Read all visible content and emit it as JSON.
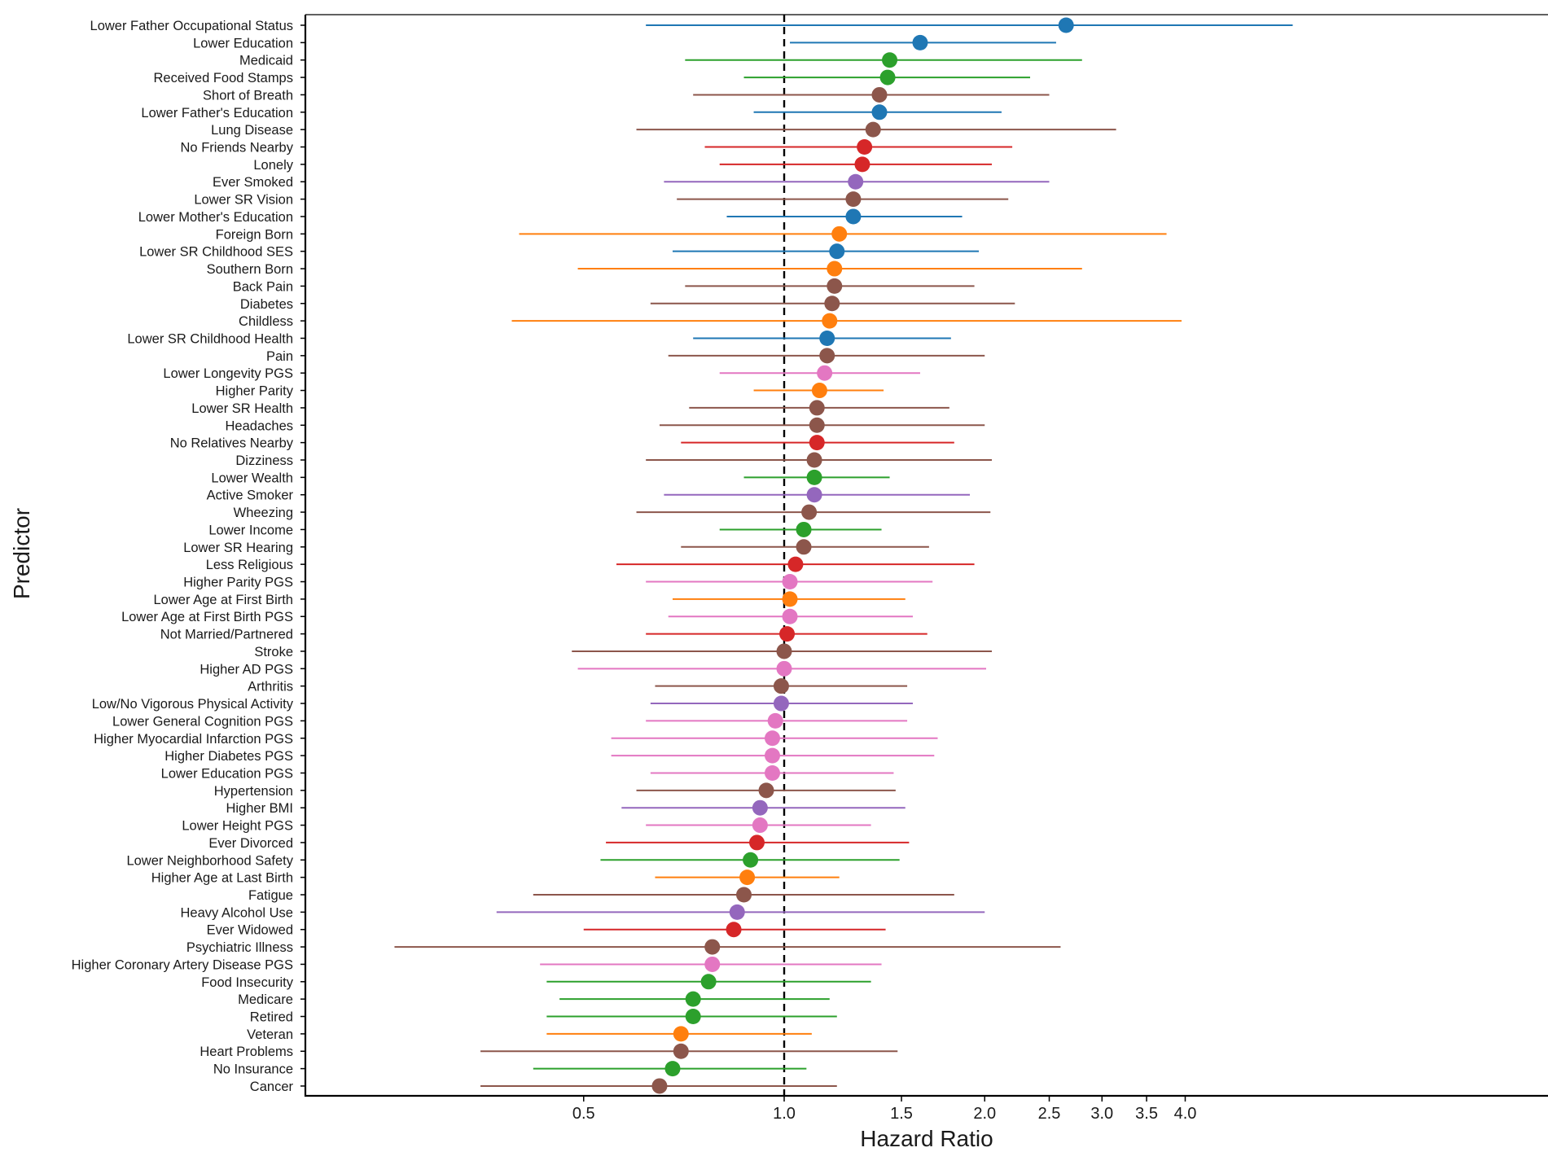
{
  "chart_data": {
    "type": "forest",
    "title": "",
    "xlabel": "Hazard Ratio",
    "ylabel": "Predictor",
    "x_scale": "log",
    "xlim": [
      0.24,
      6.5
    ],
    "x_ticks": [
      0.5,
      1.0,
      1.5,
      2.0,
      2.5,
      3.0,
      3.5,
      4.0
    ],
    "x_tick_labels": [
      "0.5",
      "1.0",
      "1.5",
      "2.0",
      "2.5",
      "3.0",
      "3.5",
      "4.0"
    ],
    "reference_line": 1.0,
    "grid": false,
    "legend": "none",
    "colors": {
      "ses": "#1f77b4",
      "demographic": "#ff7f0e",
      "economic": "#2ca02c",
      "social": "#d62728",
      "behavior": "#9467bd",
      "health": "#8c564b",
      "genetic": "#e377c2"
    },
    "rows": [
      {
        "label": "Lower Father Occupational Status",
        "hr": 2.65,
        "lo": 0.62,
        "hi": 5.8,
        "group": "ses"
      },
      {
        "label": "Lower Education",
        "hr": 1.6,
        "lo": 1.02,
        "hi": 2.56,
        "group": "ses"
      },
      {
        "label": "Medicaid",
        "hr": 1.44,
        "lo": 0.71,
        "hi": 2.8,
        "group": "economic"
      },
      {
        "label": "Received Food Stamps",
        "hr": 1.43,
        "lo": 0.87,
        "hi": 2.34,
        "group": "economic"
      },
      {
        "label": "Short of Breath",
        "hr": 1.39,
        "lo": 0.73,
        "hi": 2.5,
        "group": "health"
      },
      {
        "label": "Lower Father's Education",
        "hr": 1.39,
        "lo": 0.9,
        "hi": 2.12,
        "group": "ses"
      },
      {
        "label": "Lung Disease",
        "hr": 1.36,
        "lo": 0.6,
        "hi": 3.15,
        "group": "health"
      },
      {
        "label": "No Friends Nearby",
        "hr": 1.32,
        "lo": 0.76,
        "hi": 2.2,
        "group": "social"
      },
      {
        "label": "Lonely",
        "hr": 1.31,
        "lo": 0.8,
        "hi": 2.05,
        "group": "social"
      },
      {
        "label": "Ever Smoked",
        "hr": 1.28,
        "lo": 0.66,
        "hi": 2.5,
        "group": "behavior"
      },
      {
        "label": "Lower SR Vision",
        "hr": 1.27,
        "lo": 0.69,
        "hi": 2.17,
        "group": "health"
      },
      {
        "label": "Lower Mother's Education",
        "hr": 1.27,
        "lo": 0.82,
        "hi": 1.85,
        "group": "ses"
      },
      {
        "label": "Foreign Born",
        "hr": 1.21,
        "lo": 0.4,
        "hi": 3.75,
        "group": "demographic"
      },
      {
        "label": "Lower SR Childhood SES",
        "hr": 1.2,
        "lo": 0.68,
        "hi": 1.96,
        "group": "ses"
      },
      {
        "label": "Southern Born",
        "hr": 1.19,
        "lo": 0.49,
        "hi": 2.8,
        "group": "demographic"
      },
      {
        "label": "Back Pain",
        "hr": 1.19,
        "lo": 0.71,
        "hi": 1.93,
        "group": "health"
      },
      {
        "label": "Diabetes",
        "hr": 1.18,
        "lo": 0.63,
        "hi": 2.22,
        "group": "health"
      },
      {
        "label": "Childless",
        "hr": 1.17,
        "lo": 0.39,
        "hi": 3.95,
        "group": "demographic"
      },
      {
        "label": "Lower SR Childhood Health",
        "hr": 1.16,
        "lo": 0.73,
        "hi": 1.78,
        "group": "ses"
      },
      {
        "label": "Pain",
        "hr": 1.16,
        "lo": 0.67,
        "hi": 2.0,
        "group": "health"
      },
      {
        "label": "Lower Longevity PGS",
        "hr": 1.15,
        "lo": 0.8,
        "hi": 1.6,
        "group": "genetic"
      },
      {
        "label": "Higher Parity",
        "hr": 1.13,
        "lo": 0.9,
        "hi": 1.41,
        "group": "demographic"
      },
      {
        "label": "Lower SR Health",
        "hr": 1.12,
        "lo": 0.72,
        "hi": 1.77,
        "group": "health"
      },
      {
        "label": "Headaches",
        "hr": 1.12,
        "lo": 0.65,
        "hi": 2.0,
        "group": "health"
      },
      {
        "label": "No Relatives Nearby",
        "hr": 1.12,
        "lo": 0.7,
        "hi": 1.8,
        "group": "social"
      },
      {
        "label": "Dizziness",
        "hr": 1.11,
        "lo": 0.62,
        "hi": 2.05,
        "group": "health"
      },
      {
        "label": "Lower Wealth",
        "hr": 1.11,
        "lo": 0.87,
        "hi": 1.44,
        "group": "economic"
      },
      {
        "label": "Active Smoker",
        "hr": 1.11,
        "lo": 0.66,
        "hi": 1.9,
        "group": "behavior"
      },
      {
        "label": "Wheezing",
        "hr": 1.09,
        "lo": 0.6,
        "hi": 2.04,
        "group": "health"
      },
      {
        "label": "Lower Income",
        "hr": 1.07,
        "lo": 0.8,
        "hi": 1.4,
        "group": "economic"
      },
      {
        "label": "Lower SR Hearing",
        "hr": 1.07,
        "lo": 0.7,
        "hi": 1.65,
        "group": "health"
      },
      {
        "label": "Less Religious",
        "hr": 1.04,
        "lo": 0.56,
        "hi": 1.93,
        "group": "social"
      },
      {
        "label": "Higher Parity PGS",
        "hr": 1.02,
        "lo": 0.62,
        "hi": 1.67,
        "group": "genetic"
      },
      {
        "label": "Lower Age at First Birth",
        "hr": 1.02,
        "lo": 0.68,
        "hi": 1.52,
        "group": "demographic"
      },
      {
        "label": "Lower Age at First Birth PGS",
        "hr": 1.02,
        "lo": 0.67,
        "hi": 1.56,
        "group": "genetic"
      },
      {
        "label": "Not Married/Partnered",
        "hr": 1.01,
        "lo": 0.62,
        "hi": 1.64,
        "group": "social"
      },
      {
        "label": "Stroke",
        "hr": 1.0,
        "lo": 0.48,
        "hi": 2.05,
        "group": "health"
      },
      {
        "label": "Higher AD PGS",
        "hr": 1.0,
        "lo": 0.49,
        "hi": 2.01,
        "group": "genetic"
      },
      {
        "label": "Arthritis",
        "hr": 0.99,
        "lo": 0.64,
        "hi": 1.53,
        "group": "health"
      },
      {
        "label": "Low/No Vigorous Physical Activity",
        "hr": 0.99,
        "lo": 0.63,
        "hi": 1.56,
        "group": "behavior"
      },
      {
        "label": "Lower General Cognition PGS",
        "hr": 0.97,
        "lo": 0.62,
        "hi": 1.53,
        "group": "genetic"
      },
      {
        "label": "Higher Myocardial Infarction PGS",
        "hr": 0.96,
        "lo": 0.55,
        "hi": 1.7,
        "group": "genetic"
      },
      {
        "label": "Higher Diabetes PGS",
        "hr": 0.96,
        "lo": 0.55,
        "hi": 1.68,
        "group": "genetic"
      },
      {
        "label": "Lower Education PGS",
        "hr": 0.96,
        "lo": 0.63,
        "hi": 1.46,
        "group": "genetic"
      },
      {
        "label": "Hypertension",
        "hr": 0.94,
        "lo": 0.6,
        "hi": 1.47,
        "group": "health"
      },
      {
        "label": "Higher BMI",
        "hr": 0.92,
        "lo": 0.57,
        "hi": 1.52,
        "group": "behavior"
      },
      {
        "label": "Lower Height PGS",
        "hr": 0.92,
        "lo": 0.62,
        "hi": 1.35,
        "group": "genetic"
      },
      {
        "label": "Ever Divorced",
        "hr": 0.91,
        "lo": 0.54,
        "hi": 1.54,
        "group": "social"
      },
      {
        "label": "Lower Neighborhood Safety",
        "hr": 0.89,
        "lo": 0.53,
        "hi": 1.49,
        "group": "economic"
      },
      {
        "label": "Higher Age at Last Birth",
        "hr": 0.88,
        "lo": 0.64,
        "hi": 1.21,
        "group": "demographic"
      },
      {
        "label": "Fatigue",
        "hr": 0.87,
        "lo": 0.42,
        "hi": 1.8,
        "group": "health"
      },
      {
        "label": "Heavy Alcohol Use",
        "hr": 0.85,
        "lo": 0.37,
        "hi": 2.0,
        "group": "behavior"
      },
      {
        "label": "Ever Widowed",
        "hr": 0.84,
        "lo": 0.5,
        "hi": 1.42,
        "group": "social"
      },
      {
        "label": "Psychiatric Illness",
        "hr": 0.78,
        "lo": 0.26,
        "hi": 2.6,
        "group": "health"
      },
      {
        "label": "Higher Coronary Artery Disease PGS",
        "hr": 0.78,
        "lo": 0.43,
        "hi": 1.4,
        "group": "genetic"
      },
      {
        "label": "Food Insecurity",
        "hr": 0.77,
        "lo": 0.44,
        "hi": 1.35,
        "group": "economic"
      },
      {
        "label": "Medicare",
        "hr": 0.73,
        "lo": 0.46,
        "hi": 1.17,
        "group": "economic"
      },
      {
        "label": "Retired",
        "hr": 0.73,
        "lo": 0.44,
        "hi": 1.2,
        "group": "economic"
      },
      {
        "label": "Veteran",
        "hr": 0.7,
        "lo": 0.44,
        "hi": 1.1,
        "group": "demographic"
      },
      {
        "label": "Heart Problems",
        "hr": 0.7,
        "lo": 0.35,
        "hi": 1.48,
        "group": "health"
      },
      {
        "label": "No Insurance",
        "hr": 0.68,
        "lo": 0.42,
        "hi": 1.08,
        "group": "economic"
      },
      {
        "label": "Cancer",
        "hr": 0.65,
        "lo": 0.35,
        "hi": 1.2,
        "group": "health"
      }
    ]
  }
}
